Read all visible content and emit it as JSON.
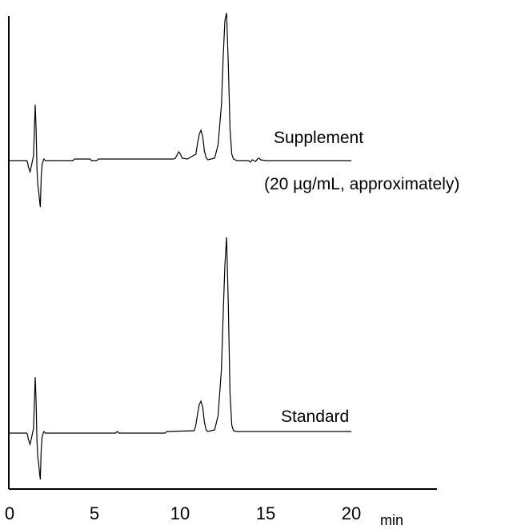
{
  "chart_data": {
    "type": "line",
    "title": "",
    "xlabel": "",
    "x_unit": "min",
    "x_ticks": [
      0,
      5,
      10,
      15,
      20
    ],
    "xlim": [
      0,
      20
    ],
    "grid": false,
    "series": [
      {
        "name": "Supplement",
        "name_line2": "(20 µg/mL, approximately)",
        "baseline_y": 0,
        "x": [
          0.0,
          1.0,
          1.05,
          1.1,
          1.2,
          1.3,
          1.4,
          1.45,
          1.5,
          1.55,
          1.6,
          1.65,
          1.7,
          1.75,
          1.8,
          1.85,
          1.9,
          2.0,
          2.1,
          3.7,
          3.8,
          4.7,
          4.8,
          5.1,
          5.2,
          9.6,
          9.7,
          9.8,
          9.9,
          10.0,
          10.1,
          10.4,
          10.9,
          11.0,
          11.1,
          11.2,
          11.3,
          11.4,
          11.5,
          11.6,
          12.0,
          12.2,
          12.4,
          12.5,
          12.6,
          12.7,
          12.8,
          12.9,
          13.0,
          13.1,
          13.3,
          13.6,
          14.0,
          14.1,
          14.2,
          14.4,
          14.5,
          14.6,
          14.7,
          15.0,
          20.0
        ],
        "y": [
          0,
          0,
          -2,
          -8,
          -14,
          -4,
          6,
          40,
          70,
          40,
          -10,
          -30,
          -38,
          -50,
          -58,
          -20,
          -5,
          2,
          0,
          0,
          2,
          2,
          0,
          0,
          2,
          2,
          3,
          7,
          11,
          8,
          3,
          2,
          8,
          22,
          33,
          38,
          30,
          12,
          4,
          1,
          3,
          20,
          70,
          130,
          175,
          185,
          120,
          40,
          8,
          2,
          0,
          0,
          0,
          -2,
          1,
          -1,
          2,
          3,
          1,
          0,
          0
        ]
      },
      {
        "name": "Standard",
        "baseline_y": 0,
        "x": [
          0.0,
          1.0,
          1.05,
          1.1,
          1.2,
          1.3,
          1.4,
          1.45,
          1.5,
          1.55,
          1.6,
          1.65,
          1.7,
          1.75,
          1.8,
          1.85,
          1.9,
          2.0,
          2.1,
          6.2,
          6.3,
          6.4,
          9.1,
          9.2,
          10.8,
          10.9,
          11.0,
          11.1,
          11.2,
          11.3,
          11.4,
          11.5,
          11.6,
          12.0,
          12.2,
          12.4,
          12.5,
          12.6,
          12.7,
          12.8,
          12.9,
          13.0,
          13.1,
          13.3,
          20.0
        ],
        "y": [
          0,
          0,
          -2,
          -8,
          -14,
          -4,
          6,
          40,
          70,
          40,
          -10,
          -30,
          -38,
          -50,
          -58,
          -20,
          -5,
          2,
          0,
          0,
          2,
          0,
          0,
          2,
          3,
          10,
          24,
          36,
          40,
          32,
          14,
          4,
          2,
          4,
          22,
          80,
          150,
          210,
          245,
          160,
          50,
          10,
          3,
          2,
          2
        ]
      }
    ]
  }
}
